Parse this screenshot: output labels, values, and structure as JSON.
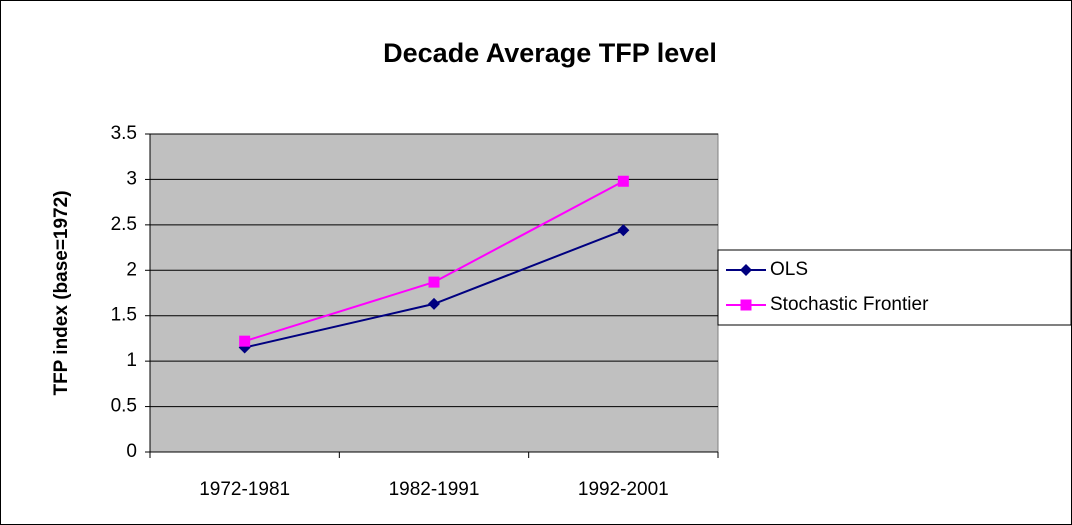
{
  "chart_data": {
    "type": "line",
    "title": "Decade Average TFP level",
    "y_label": "TFP index (base=1972)",
    "categories": [
      "1972-1981",
      "1982-1991",
      "1992-2001"
    ],
    "series": [
      {
        "name": "OLS",
        "color": "#000080",
        "marker": "diamond",
        "values": [
          1.15,
          1.63,
          2.44
        ]
      },
      {
        "name": "Stochastic Frontier",
        "color": "#ff00ff",
        "marker": "square",
        "values": [
          1.22,
          1.87,
          2.98
        ]
      }
    ],
    "ylim": [
      0,
      3.5
    ],
    "yticks": [
      0,
      0.5,
      1,
      1.5,
      2,
      2.5,
      3,
      3.5
    ],
    "grid": true,
    "plot_background": "#c0c0c0",
    "legend": "right"
  }
}
